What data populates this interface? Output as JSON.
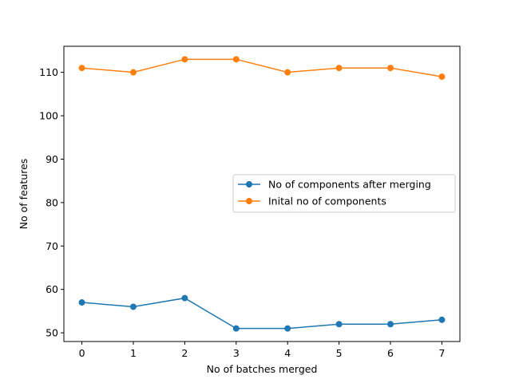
{
  "chart_data": {
    "type": "line",
    "title": "",
    "xlabel": "No of batches merged",
    "ylabel": "No of features",
    "x": [
      0,
      1,
      2,
      3,
      4,
      5,
      6,
      7
    ],
    "xlim": [
      -0.35,
      7.35
    ],
    "ylim": [
      48,
      116
    ],
    "xticks": [
      0,
      1,
      2,
      3,
      4,
      5,
      6,
      7
    ],
    "yticks": [
      50,
      60,
      70,
      80,
      90,
      100,
      110
    ],
    "grid": false,
    "legend_position": "center-right",
    "series": [
      {
        "name": "No of components after merging",
        "color": "#1f77b4",
        "marker": "circle",
        "values": [
          57,
          56,
          58,
          51,
          51,
          52,
          52,
          53
        ]
      },
      {
        "name": "Inital no of components",
        "color": "#ff7f0e",
        "marker": "circle",
        "values": [
          111,
          110,
          113,
          113,
          110,
          111,
          111,
          109
        ]
      }
    ]
  }
}
